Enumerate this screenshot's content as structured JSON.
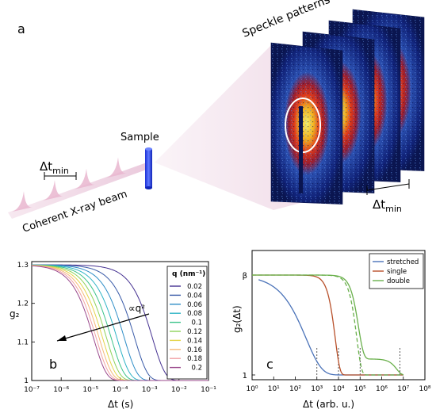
{
  "panel_a": {
    "label": "a",
    "speckle_title": "Speckle patterns",
    "sample_label": "Sample",
    "beam_label": "Coherent X-ray beam",
    "dt_min_left": {
      "main": "Δt",
      "sub": "min"
    },
    "dt_min_right": {
      "main": "Δt",
      "sub": "min"
    }
  },
  "chart_data": [
    {
      "type": "line",
      "panel_label": "b",
      "xlabel": "Δt (s)",
      "ylabel": "g₂",
      "x_scale": "log",
      "xlim": [
        1e-07,
        0.1
      ],
      "ylim": [
        1.0,
        1.3
      ],
      "x_ticks": [
        "10⁻⁷",
        "10⁻⁶",
        "10⁻⁵",
        "10⁻⁴",
        "10⁻³",
        "10⁻²",
        "10⁻¹"
      ],
      "y_ticks": [
        "1",
        "1.1",
        "1.2",
        "1.3"
      ],
      "annotation": "∝q²",
      "legend_title": "q (nm⁻¹)",
      "legend_position": "right",
      "model": "g2 = 1 + 0.3·exp(-2·Γ·Δt), Γ ∝ q²",
      "series": [
        {
          "name": "0.02",
          "color": "#453191"
        },
        {
          "name": "0.04",
          "color": "#3a5ba8"
        },
        {
          "name": "0.06",
          "color": "#2f8ec7"
        },
        {
          "name": "0.08",
          "color": "#2fb4c6"
        },
        {
          "name": "0.1",
          "color": "#3cc38a"
        },
        {
          "name": "0.12",
          "color": "#8fd35a"
        },
        {
          "name": "0.14",
          "color": "#e4d44a"
        },
        {
          "name": "0.16",
          "color": "#f5b97a"
        },
        {
          "name": "0.18",
          "color": "#f1a2a6"
        },
        {
          "name": "0.2",
          "color": "#9b4a8d"
        }
      ],
      "decay_times_s": [
        0.0025,
        0.000625,
        0.000278,
        0.000156,
        0.0001,
        6.94e-05,
        5.1e-05,
        3.9e-05,
        3.09e-05,
        2.5e-05
      ]
    },
    {
      "type": "line",
      "panel_label": "c",
      "xlabel": "Δt (arb. u.)",
      "ylabel": "g₂(Δt)",
      "x_scale": "log",
      "xlim": [
        1,
        100000000.0
      ],
      "x_ticks": [
        "10⁰",
        "10¹",
        "10²",
        "10³",
        "10⁴",
        "10⁵",
        "10⁶",
        "10⁷",
        "10⁸"
      ],
      "y_ticks": [
        "1",
        "β"
      ],
      "legend_position": "top-right",
      "series": [
        {
          "name": "stretched",
          "color": "#4a72b8",
          "tau": 1000,
          "beta": 0.6,
          "start_x": 2
        },
        {
          "name": "single",
          "color": "#b8502a",
          "tau": 10000,
          "beta": 2,
          "start_x": 1
        },
        {
          "name": "double",
          "color": "#6ab04c",
          "components": [
            {
              "tau": 100000,
              "weight": 0.6
            },
            {
              "tau": 7000000,
              "weight": 0.4
            }
          ],
          "start_x": 1
        }
      ],
      "dashed_reference": {
        "color": "#6ab04c",
        "tau": 100000
      },
      "marker_x": [
        1000,
        10000,
        100000,
        7000000
      ]
    }
  ]
}
